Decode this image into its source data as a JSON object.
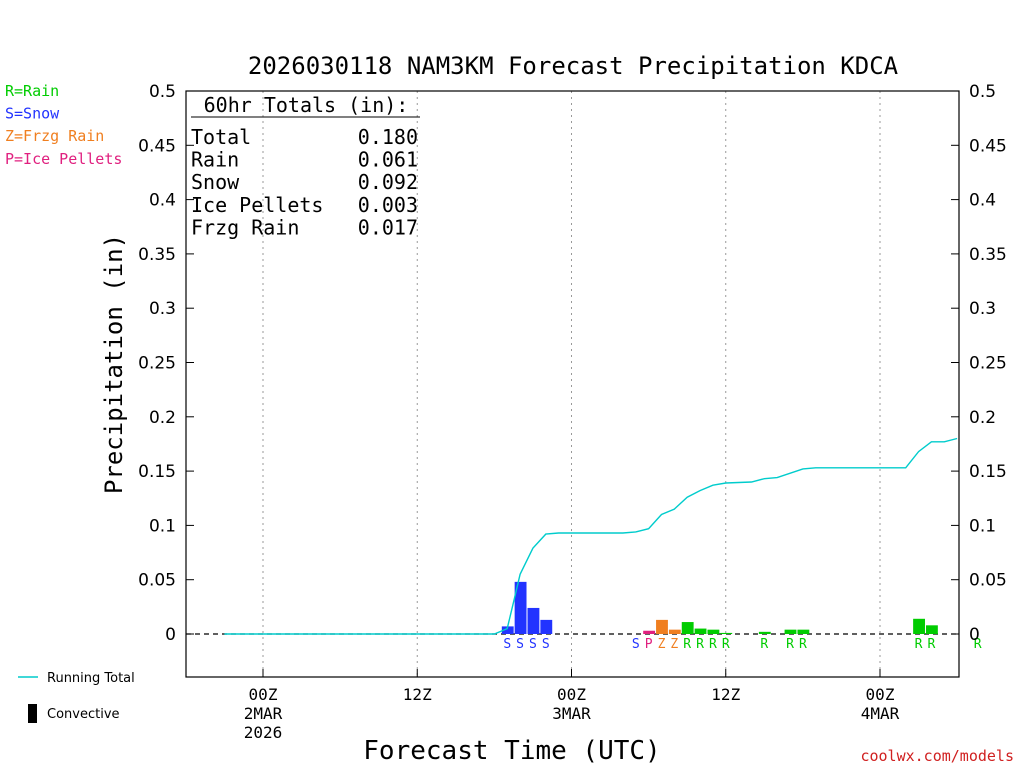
{
  "chart_data": {
    "type": "bar",
    "title": "2026030118 NAM3KM Forecast Precipitation KDCA",
    "xlabel": "Forecast Time (UTC)",
    "ylabel": "Precipitation (in)",
    "ylim": [
      -0.04,
      0.5
    ],
    "yticks": [
      "0",
      "0.05",
      "0.1",
      "0.15",
      "0.2",
      "0.25",
      "0.3",
      "0.35",
      "0.4",
      "0.45",
      "0.5"
    ],
    "yticks_values": [
      0,
      0.05,
      0.1,
      0.15,
      0.2,
      0.25,
      0.3,
      0.35,
      0.4,
      0.45,
      0.5
    ],
    "xlim_hours": [
      -4.2,
      56.2
    ],
    "xticks": [
      {
        "hour": 0,
        "label1": "00Z",
        "label2": "2MAR",
        "label3": "2026",
        "grid": true
      },
      {
        "hour": 12,
        "label1": "12Z",
        "label2": "",
        "label3": "",
        "grid": true
      },
      {
        "hour": 24,
        "label1": "00Z",
        "label2": "3MAR",
        "label3": "",
        "grid": true
      },
      {
        "hour": 36,
        "label1": "12Z",
        "label2": "",
        "label3": "",
        "grid": true
      },
      {
        "hour": 48,
        "label1": "00Z",
        "label2": "4MAR",
        "label3": "",
        "grid": true
      }
    ],
    "series_colors": {
      "rain": "#00cc00",
      "snow": "#2233ff",
      "frzg_rain": "#f07f20",
      "ice_pellets": "#e0207f"
    },
    "bars": [
      {
        "hour": 19,
        "type": "S",
        "value": 0.007
      },
      {
        "hour": 20,
        "type": "S",
        "value": 0.048
      },
      {
        "hour": 21,
        "type": "S",
        "value": 0.024
      },
      {
        "hour": 22,
        "type": "S",
        "value": 0.013
      },
      {
        "hour": 29,
        "type": "S",
        "value": 0.0
      },
      {
        "hour": 30,
        "type": "P",
        "value": 0.003
      },
      {
        "hour": 31,
        "type": "Z",
        "value": 0.013
      },
      {
        "hour": 32,
        "type": "Z",
        "value": 0.004
      },
      {
        "hour": 33,
        "type": "R",
        "value": 0.011
      },
      {
        "hour": 34,
        "type": "R",
        "value": 0.005
      },
      {
        "hour": 35,
        "type": "R",
        "value": 0.004
      },
      {
        "hour": 36,
        "type": "R",
        "value": 0.001
      },
      {
        "hour": 39,
        "type": "R",
        "value": 0.002
      },
      {
        "hour": 41,
        "type": "R",
        "value": 0.004
      },
      {
        "hour": 42,
        "type": "R",
        "value": 0.004
      },
      {
        "hour": 51,
        "type": "R",
        "value": 0.014
      },
      {
        "hour": 52,
        "type": "R",
        "value": 0.008
      },
      {
        "hour": 55.6,
        "type": "R",
        "value": 0.0
      }
    ],
    "running_total": {
      "name": "Running Total",
      "color": "#00cccc",
      "points": [
        [
          -3,
          0
        ],
        [
          18,
          0
        ],
        [
          19,
          0.005
        ],
        [
          19.5,
          0.03
        ],
        [
          20,
          0.055
        ],
        [
          21,
          0.079
        ],
        [
          22,
          0.092
        ],
        [
          23,
          0.093
        ],
        [
          28,
          0.093
        ],
        [
          29,
          0.094
        ],
        [
          30,
          0.097
        ],
        [
          31,
          0.11
        ],
        [
          32,
          0.115
        ],
        [
          33,
          0.126
        ],
        [
          34,
          0.132
        ],
        [
          35,
          0.137
        ],
        [
          36,
          0.139
        ],
        [
          38,
          0.14
        ],
        [
          39,
          0.143
        ],
        [
          40,
          0.144
        ],
        [
          42,
          0.152
        ],
        [
          43,
          0.153
        ],
        [
          50,
          0.153
        ],
        [
          51,
          0.168
        ],
        [
          52,
          0.177
        ],
        [
          53,
          0.177
        ],
        [
          54,
          0.18
        ]
      ]
    },
    "totals_box": {
      "heading": "60hr Totals (in):",
      "rows": [
        {
          "label": "Total",
          "value": "0.180"
        },
        {
          "label": "Rain",
          "value": "0.061"
        },
        {
          "label": "Snow",
          "value": "0.092"
        },
        {
          "label": "Ice Pellets",
          "value": "0.003"
        },
        {
          "label": "Frzg Rain",
          "value": "0.017"
        }
      ]
    },
    "legend_types": [
      {
        "label": "R=Rain",
        "color": "#00cc00"
      },
      {
        "label": "S=Snow",
        "color": "#2233ff"
      },
      {
        "label": "Z=Frzg Rain",
        "color": "#f07f20"
      },
      {
        "label": "P=Ice Pellets",
        "color": "#e0207f"
      }
    ],
    "legend_lines": [
      {
        "label": "Running Total"
      },
      {
        "label": "Convective"
      }
    ],
    "credit": "coolwx.com/models"
  }
}
